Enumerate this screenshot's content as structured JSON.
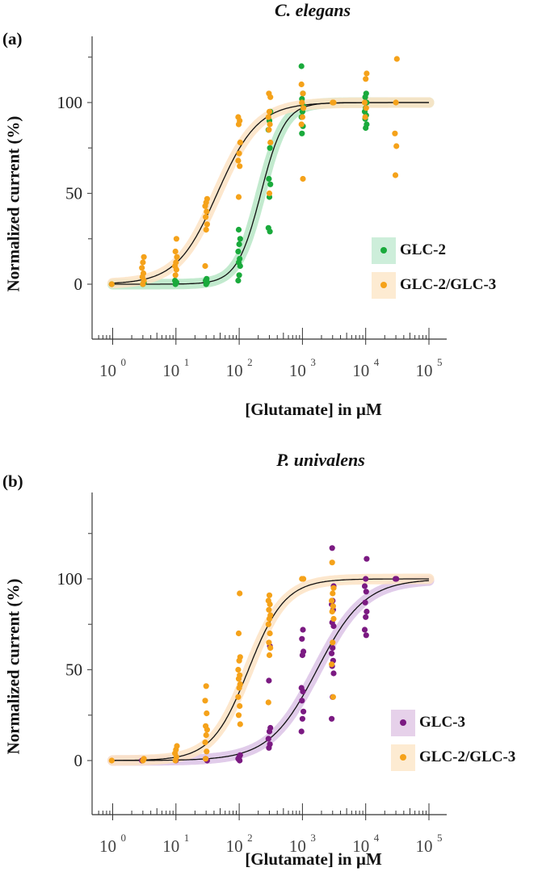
{
  "chart_data": [
    {
      "panel": "(a)",
      "type": "scatter",
      "title": "C. elegans",
      "xlabel": "[Glutamate] in µM",
      "ylabel": "Normalized current (%)",
      "xscale": "log",
      "xlim": [
        0.6,
        100000
      ],
      "ylim": [
        -20,
        130
      ],
      "xticks": [
        {
          "v": 1,
          "e": "0"
        },
        {
          "v": 10,
          "e": "1"
        },
        {
          "v": 100,
          "e": "2"
        },
        {
          "v": 1000,
          "e": "3"
        },
        {
          "v": 10000,
          "e": "4"
        },
        {
          "v": 100000,
          "e": "5"
        }
      ],
      "yticks": [
        0,
        50,
        100
      ],
      "yminor": [
        25,
        75,
        125
      ],
      "legend_position": "right-middle",
      "series": [
        {
          "name": "GLC-2",
          "color": "#1aaa3c",
          "band_color": "#b7e6c6",
          "fit": {
            "ec50": 220,
            "hill": 2.3
          },
          "points": [
            [
              1,
              0
            ],
            [
              3,
              0
            ],
            [
              3,
              1
            ],
            [
              10,
              0
            ],
            [
              10,
              1
            ],
            [
              10,
              2
            ],
            [
              30,
              0
            ],
            [
              30,
              1
            ],
            [
              30,
              2
            ],
            [
              30,
              3
            ],
            [
              100,
              2
            ],
            [
              100,
              5
            ],
            [
              100,
              10
            ],
            [
              100,
              12
            ],
            [
              100,
              14
            ],
            [
              100,
              18
            ],
            [
              100,
              22
            ],
            [
              100,
              25
            ],
            [
              100,
              30
            ],
            [
              300,
              29
            ],
            [
              300,
              31
            ],
            [
              300,
              48
            ],
            [
              300,
              55
            ],
            [
              300,
              58
            ],
            [
              300,
              75
            ],
            [
              300,
              85
            ],
            [
              300,
              90
            ],
            [
              300,
              95
            ],
            [
              1000,
              83
            ],
            [
              1000,
              87
            ],
            [
              1000,
              92
            ],
            [
              1000,
              95
            ],
            [
              1000,
              98
            ],
            [
              1000,
              102
            ],
            [
              1000,
              105
            ],
            [
              1000,
              120
            ],
            [
              10000,
              86
            ],
            [
              10000,
              88
            ],
            [
              10000,
              91
            ],
            [
              10000,
              93
            ],
            [
              10000,
              95
            ],
            [
              10000,
              97
            ],
            [
              10000,
              100
            ],
            [
              10000,
              103
            ],
            [
              10000,
              105
            ]
          ]
        },
        {
          "name": "GLC-2/GLC-3",
          "color": "#f5a21a",
          "band_color": "#fde3c4",
          "fit": {
            "ec50": 45,
            "hill": 1.35
          },
          "points": [
            [
              1,
              0
            ],
            [
              3,
              0
            ],
            [
              3,
              2
            ],
            [
              3,
              4
            ],
            [
              3,
              6
            ],
            [
              3,
              9
            ],
            [
              3,
              12
            ],
            [
              3,
              15
            ],
            [
              10,
              5
            ],
            [
              10,
              8
            ],
            [
              10,
              10
            ],
            [
              10,
              12
            ],
            [
              10,
              15
            ],
            [
              10,
              18
            ],
            [
              10,
              25
            ],
            [
              30,
              10
            ],
            [
              30,
              30
            ],
            [
              30,
              33
            ],
            [
              30,
              37
            ],
            [
              30,
              40
            ],
            [
              30,
              43
            ],
            [
              30,
              45
            ],
            [
              30,
              47
            ],
            [
              100,
              48
            ],
            [
              100,
              65
            ],
            [
              100,
              68
            ],
            [
              100,
              72
            ],
            [
              100,
              78
            ],
            [
              100,
              88
            ],
            [
              100,
              90
            ],
            [
              100,
              92
            ],
            [
              300,
              50
            ],
            [
              300,
              78
            ],
            [
              300,
              85
            ],
            [
              300,
              88
            ],
            [
              300,
              92
            ],
            [
              300,
              95
            ],
            [
              300,
              103
            ],
            [
              300,
              105
            ],
            [
              1000,
              58
            ],
            [
              1000,
              88
            ],
            [
              1000,
              92
            ],
            [
              1000,
              97
            ],
            [
              1000,
              100
            ],
            [
              1000,
              105
            ],
            [
              1000,
              110
            ],
            [
              3000,
              100
            ],
            [
              3000,
              100
            ],
            [
              10000,
              92
            ],
            [
              10000,
              97
            ],
            [
              10000,
              100
            ],
            [
              10000,
              113
            ],
            [
              10000,
              116
            ],
            [
              30000,
              60
            ],
            [
              30000,
              76
            ],
            [
              30000,
              83
            ],
            [
              30000,
              100
            ],
            [
              30000,
              124
            ]
          ]
        }
      ]
    },
    {
      "panel": "(b)",
      "type": "scatter",
      "title": "P. univalens",
      "xlabel": "[Glutamate] in µM",
      "ylabel": "Normalized current (%)",
      "xscale": "log",
      "xlim": [
        0.6,
        100000
      ],
      "ylim": [
        -20,
        130
      ],
      "xticks": [
        {
          "v": 1,
          "e": "0"
        },
        {
          "v": 10,
          "e": "1"
        },
        {
          "v": 100,
          "e": "2"
        },
        {
          "v": 1000,
          "e": "3"
        },
        {
          "v": 10000,
          "e": "4"
        },
        {
          "v": 100000,
          "e": "5"
        }
      ],
      "yticks": [
        0,
        50,
        100
      ],
      "yminor": [
        25,
        75,
        125
      ],
      "legend_position": "right-lower",
      "series": [
        {
          "name": "GLC-3",
          "color": "#7b1a82",
          "band_color": "#dcc3e6",
          "fit": {
            "ec50": 1700,
            "hill": 1.15
          },
          "points": [
            [
              3,
              0
            ],
            [
              10,
              0
            ],
            [
              30,
              0
            ],
            [
              30,
              1
            ],
            [
              100,
              0
            ],
            [
              100,
              1
            ],
            [
              100,
              2
            ],
            [
              100,
              3
            ],
            [
              300,
              7
            ],
            [
              300,
              9
            ],
            [
              300,
              12
            ],
            [
              300,
              16
            ],
            [
              300,
              18
            ],
            [
              300,
              44
            ],
            [
              300,
              63
            ],
            [
              1000,
              16
            ],
            [
              1000,
              23
            ],
            [
              1000,
              27
            ],
            [
              1000,
              33
            ],
            [
              1000,
              38
            ],
            [
              1000,
              40
            ],
            [
              1000,
              58
            ],
            [
              1000,
              60
            ],
            [
              1000,
              67
            ],
            [
              1000,
              72
            ],
            [
              3000,
              23
            ],
            [
              3000,
              35
            ],
            [
              3000,
              48
            ],
            [
              3000,
              52
            ],
            [
              3000,
              55
            ],
            [
              3000,
              59
            ],
            [
              3000,
              62
            ],
            [
              3000,
              74
            ],
            [
              3000,
              76
            ],
            [
              3000,
              83
            ],
            [
              3000,
              86
            ],
            [
              3000,
              88
            ],
            [
              3000,
              96
            ],
            [
              3000,
              117
            ],
            [
              10000,
              69
            ],
            [
              10000,
              72
            ],
            [
              10000,
              79
            ],
            [
              10000,
              82
            ],
            [
              10000,
              87
            ],
            [
              10000,
              93
            ],
            [
              10000,
              96
            ],
            [
              10000,
              100
            ],
            [
              10000,
              111
            ],
            [
              30000,
              100
            ],
            [
              30000,
              100
            ]
          ]
        },
        {
          "name": "GLC-2/GLC-3",
          "color": "#f5a21a",
          "band_color": "#fde3c4",
          "fit": {
            "ec50": 140,
            "hill": 1.5
          },
          "points": [
            [
              1,
              0
            ],
            [
              3,
              0
            ],
            [
              3,
              1
            ],
            [
              10,
              0
            ],
            [
              10,
              2
            ],
            [
              10,
              4
            ],
            [
              10,
              6
            ],
            [
              10,
              8
            ],
            [
              30,
              1
            ],
            [
              30,
              5
            ],
            [
              30,
              10
            ],
            [
              30,
              14
            ],
            [
              30,
              17
            ],
            [
              30,
              19
            ],
            [
              30,
              26
            ],
            [
              30,
              33
            ],
            [
              30,
              41
            ],
            [
              100,
              20
            ],
            [
              100,
              25
            ],
            [
              100,
              30
            ],
            [
              100,
              35
            ],
            [
              100,
              40
            ],
            [
              100,
              42
            ],
            [
              100,
              45
            ],
            [
              100,
              47
            ],
            [
              100,
              50
            ],
            [
              100,
              55
            ],
            [
              100,
              57
            ],
            [
              100,
              70
            ],
            [
              100,
              92
            ],
            [
              300,
              32
            ],
            [
              300,
              58
            ],
            [
              300,
              62
            ],
            [
              300,
              65
            ],
            [
              300,
              70
            ],
            [
              300,
              75
            ],
            [
              300,
              78
            ],
            [
              300,
              80
            ],
            [
              300,
              83
            ],
            [
              300,
              86
            ],
            [
              300,
              88
            ],
            [
              300,
              91
            ],
            [
              1000,
              100
            ],
            [
              1000,
              100
            ],
            [
              3000,
              35
            ],
            [
              3000,
              53
            ],
            [
              3000,
              65
            ],
            [
              3000,
              78
            ],
            [
              3000,
              82
            ],
            [
              3000,
              85
            ],
            [
              3000,
              88
            ],
            [
              3000,
              92
            ],
            [
              3000,
              95
            ],
            [
              3000,
              109
            ]
          ]
        }
      ]
    }
  ]
}
